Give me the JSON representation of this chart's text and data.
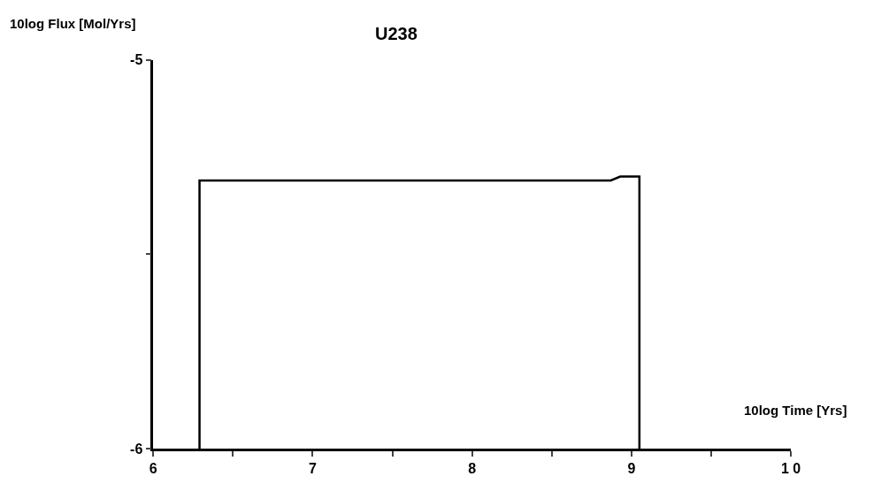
{
  "chart_data": {
    "type": "line",
    "title": "U238",
    "xlabel": "10log Time [Yrs]",
    "ylabel": "10log Flux [Mol/Yrs]",
    "x": [
      6.29,
      6.29,
      8.87,
      8.93,
      9.05,
      9.05
    ],
    "values": [
      -6,
      -5.31,
      -5.31,
      -5.3,
      -5.3,
      -6
    ],
    "color": "#000000",
    "xlim": [
      6,
      10
    ],
    "ylim": [
      -6,
      -5
    ],
    "xticks": [
      6,
      {
        "value": 6.5,
        "label": null
      },
      7,
      {
        "value": 7.5,
        "label": null
      },
      8,
      {
        "value": 8.5,
        "label": null
      },
      9,
      {
        "value": 9.5,
        "label": null
      },
      {
        "value": 10,
        "label": "1 0"
      }
    ],
    "yticks": [
      -6,
      {
        "value": -5.5,
        "label": null
      },
      -5
    ],
    "marker": "none",
    "line_style": "solid"
  }
}
